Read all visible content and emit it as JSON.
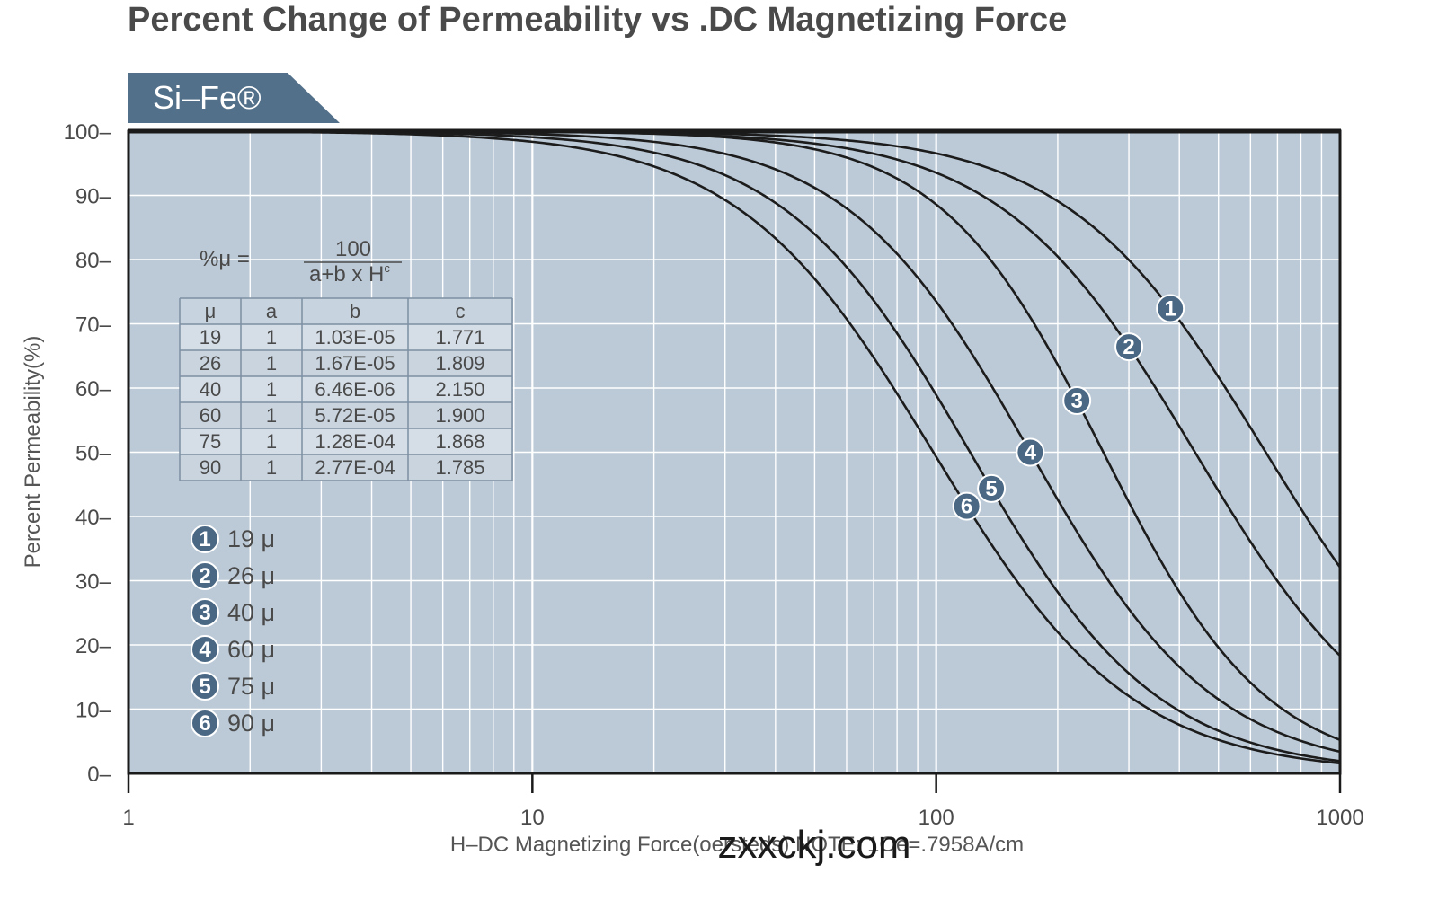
{
  "chart_data": {
    "type": "line",
    "title": "Percent Change of Permeability vs .DC Magnetizing Force",
    "material_tab": "Si–Fe®",
    "xlabel": "H–DC Magnetizing Force(oersteds) NOTE: 1Oe=.7958A/cm",
    "ylabel": "Percent Permeability(%)",
    "x_scale": "log",
    "xlim": [
      1,
      1000
    ],
    "ylim": [
      0,
      100
    ],
    "x_ticks": [
      "1",
      "10",
      "100",
      "1000"
    ],
    "y_ticks": [
      "0–",
      "10–",
      "20–",
      "30–",
      "40–",
      "50–",
      "60–",
      "70–",
      "80–",
      "90–",
      "100–"
    ],
    "grid": true,
    "formula": {
      "lhs": "%μ =",
      "numerator": "100",
      "denominator_base": "a+b x H",
      "denominator_exp": "c"
    },
    "table": {
      "headers": [
        "μ",
        "a",
        "b",
        "c"
      ],
      "rows": [
        [
          "19",
          "1",
          "1.03E-05",
          "1.771"
        ],
        [
          "26",
          "1",
          "1.67E-05",
          "1.809"
        ],
        [
          "40",
          "1",
          "6.46E-06",
          "2.150"
        ],
        [
          "60",
          "1",
          "5.72E-05",
          "1.900"
        ],
        [
          "75",
          "1",
          "1.28E-04",
          "1.868"
        ],
        [
          "90",
          "1",
          "2.77E-04",
          "1.785"
        ]
      ]
    },
    "series": [
      {
        "id": "1",
        "name": "19 μ",
        "a": 1,
        "b": 1.03e-05,
        "c": 1.771,
        "label_x": 380
      },
      {
        "id": "2",
        "name": "26 μ",
        "a": 1,
        "b": 1.67e-05,
        "c": 1.809,
        "label_x": 300
      },
      {
        "id": "3",
        "name": "40 μ",
        "a": 1,
        "b": 6.46e-06,
        "c": 2.15,
        "label_x": 223
      },
      {
        "id": "4",
        "name": "60 μ",
        "a": 1,
        "b": 5.72e-05,
        "c": 1.9,
        "label_x": 171
      },
      {
        "id": "5",
        "name": "75 μ",
        "a": 1,
        "b": 0.000128,
        "c": 1.868,
        "label_x": 137
      },
      {
        "id": "6",
        "name": "90 μ",
        "a": 1,
        "b": 0.000277,
        "c": 1.785,
        "label_x": 119
      }
    ]
  },
  "watermark": "zxxckj.com",
  "colors": {
    "plot_bg": "#bccad7",
    "grid": "#ffffff",
    "curve": "#1c1c1c",
    "tab": "#53708a",
    "badge": "#4a6884",
    "border": "#1a1a1a",
    "table_line": "#7d8fa2"
  }
}
